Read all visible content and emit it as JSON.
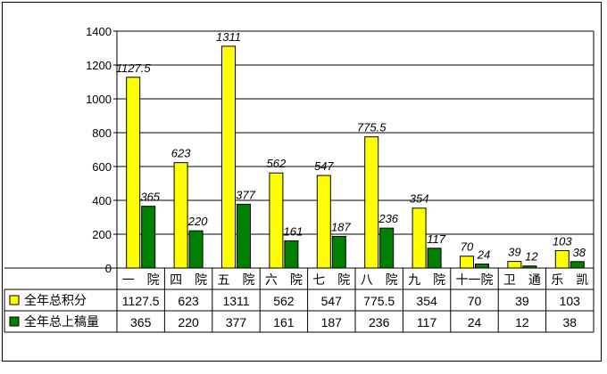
{
  "chart_data": {
    "type": "bar",
    "categories": [
      "一　院",
      "四　院",
      "五　院",
      "六　院",
      "七　院",
      "八　院",
      "九　院",
      "十一院",
      "卫　通",
      "乐　凯"
    ],
    "series": [
      {
        "name": "全年总积分",
        "color": "#ffff00",
        "values": [
          1127.5,
          623,
          1311,
          562,
          547,
          775.5,
          354,
          70,
          39,
          103
        ],
        "labels": [
          "1127.5",
          "623",
          "1311",
          "562",
          "547",
          "775.5",
          "354",
          "70",
          "39",
          "103"
        ]
      },
      {
        "name": "全年总上稿量",
        "color": "#008000",
        "values": [
          365,
          220,
          377,
          161,
          187,
          236,
          117,
          24,
          12,
          38
        ],
        "labels": [
          "365",
          "220",
          "377",
          "161",
          "187",
          "236",
          "117",
          "24",
          "12",
          "38"
        ]
      }
    ],
    "ylim": [
      0,
      1400
    ],
    "yticks": [
      "0",
      "200",
      "400",
      "600",
      "800",
      "1000",
      "1200",
      "1400"
    ],
    "grid": true,
    "legend": "data-table-left",
    "title": "",
    "xlabel": "",
    "ylabel": ""
  }
}
